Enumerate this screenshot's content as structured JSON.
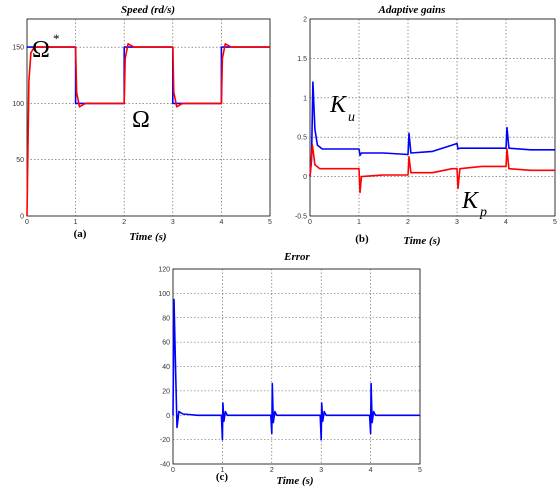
{
  "chart_data": [
    {
      "type": "line",
      "panel_label": "(a)",
      "title": "Speed (rd/s)",
      "xlabel": "Time (s)",
      "ylabel": "",
      "xlim": [
        0,
        5
      ],
      "ylim": [
        0,
        175
      ],
      "xticks": [
        0,
        1,
        2,
        3,
        4,
        5
      ],
      "yticks": [
        0,
        50,
        100,
        150
      ],
      "grid": true,
      "annotations": [
        {
          "text": "Ω",
          "superscript": "*",
          "color": "#000000"
        },
        {
          "text": "Ω",
          "color": "#000000"
        }
      ],
      "series": [
        {
          "color": "#0000ff",
          "x": [
            0,
            0.05,
            0.05,
            1,
            1,
            2,
            2,
            3,
            3,
            4,
            4,
            5
          ],
          "y": [
            150,
            150,
            150,
            150,
            100,
            100,
            150,
            150,
            100,
            100,
            150,
            150
          ]
        },
        {
          "color": "#ff0000",
          "x": [
            0,
            0.04,
            0.08,
            0.15,
            0.3,
            1,
            1.02,
            1.08,
            1.2,
            2,
            2.02,
            2.08,
            2.2,
            3,
            3.02,
            3.08,
            3.2,
            4,
            4.02,
            4.08,
            4.2,
            5
          ],
          "y": [
            0,
            120,
            145,
            150,
            150,
            150,
            110,
            97,
            100,
            100,
            140,
            153,
            150,
            150,
            110,
            97,
            100,
            100,
            140,
            153,
            150,
            150
          ]
        }
      ]
    },
    {
      "type": "line",
      "panel_label": "(b)",
      "title": "Adaptive gains",
      "xlabel": "Time (s)",
      "ylabel": "",
      "xlim": [
        0,
        5
      ],
      "ylim": [
        -0.5,
        2
      ],
      "xticks": [
        0,
        1,
        2,
        3,
        4,
        5
      ],
      "yticks": [
        -0.5,
        0,
        0.5,
        1,
        1.5,
        2
      ],
      "grid": true,
      "annotations": [
        {
          "text": "K",
          "subscript": "u",
          "color": "#000000"
        },
        {
          "text": "K",
          "subscript": "p",
          "color": "#000000"
        }
      ],
      "series": [
        {
          "color": "#0000ff",
          "x": [
            0,
            0.03,
            0.06,
            0.1,
            0.15,
            0.25,
            0.5,
            1,
            1.02,
            1.05,
            1.5,
            2,
            2.02,
            2.06,
            2.5,
            2.9,
            3,
            3.02,
            3.06,
            3.5,
            4,
            4.02,
            4.06,
            4.5,
            5
          ],
          "y": [
            0,
            0.2,
            1.2,
            0.6,
            0.4,
            0.35,
            0.35,
            0.35,
            0.27,
            0.3,
            0.3,
            0.28,
            0.55,
            0.3,
            0.32,
            0.4,
            0.42,
            0.35,
            0.36,
            0.36,
            0.36,
            0.62,
            0.36,
            0.34,
            0.34
          ]
        },
        {
          "color": "#ff0000",
          "x": [
            0,
            0.05,
            0.1,
            0.2,
            0.5,
            1,
            1.02,
            1.05,
            1.5,
            2,
            2.02,
            2.06,
            2.5,
            2.9,
            3,
            3.02,
            3.06,
            3.5,
            4,
            4.02,
            4.06,
            4.5,
            5
          ],
          "y": [
            0,
            0.4,
            0.15,
            0.1,
            0.1,
            0.1,
            -0.2,
            0.0,
            0.02,
            0.02,
            0.25,
            0.05,
            0.05,
            0.1,
            0.1,
            -0.15,
            0.1,
            0.13,
            0.13,
            0.35,
            0.1,
            0.08,
            0.08
          ]
        }
      ]
    },
    {
      "type": "line",
      "panel_label": "(c)",
      "title": "Error",
      "xlabel": "Time (s)",
      "ylabel": "",
      "xlim": [
        0,
        5
      ],
      "ylim": [
        -40,
        120
      ],
      "xticks": [
        0,
        1,
        2,
        3,
        4,
        5
      ],
      "yticks": [
        -40,
        -20,
        0,
        20,
        40,
        60,
        80,
        100,
        120
      ],
      "grid": true,
      "series": [
        {
          "color": "#0000ff",
          "x": [
            0,
            0.02,
            0.05,
            0.08,
            0.12,
            0.2,
            0.5,
            0.98,
            1,
            1.01,
            1.03,
            1.06,
            1.1,
            1.2,
            1.98,
            2,
            2.01,
            2.03,
            2.06,
            2.1,
            2.2,
            2.98,
            3,
            3.01,
            3.03,
            3.06,
            3.1,
            3.2,
            3.98,
            4,
            4.01,
            4.03,
            4.06,
            4.1,
            4.2,
            5
          ],
          "y": [
            0,
            95,
            40,
            -10,
            3,
            1,
            0,
            0,
            -20,
            10,
            -5,
            3,
            0,
            0,
            0,
            -15,
            26,
            -6,
            3,
            0,
            0,
            0,
            -20,
            10,
            -5,
            3,
            0,
            0,
            0,
            -15,
            26,
            -6,
            3,
            0,
            0,
            0
          ]
        }
      ]
    }
  ]
}
